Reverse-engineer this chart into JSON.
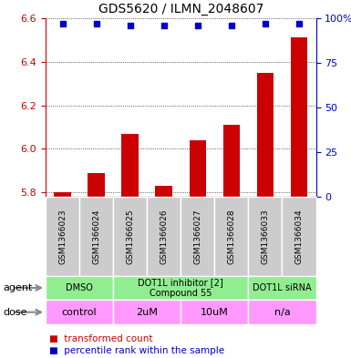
{
  "title": "GDS5620 / ILMN_2048607",
  "samples": [
    "GSM1366023",
    "GSM1366024",
    "GSM1366025",
    "GSM1366026",
    "GSM1366027",
    "GSM1366028",
    "GSM1366033",
    "GSM1366034"
  ],
  "bar_values": [
    5.8,
    5.89,
    6.07,
    5.83,
    6.04,
    6.11,
    6.35,
    6.51
  ],
  "percentile_values": [
    97,
    97,
    96,
    96,
    96,
    96,
    97,
    97
  ],
  "ylim": [
    5.78,
    6.6
  ],
  "yticks_left": [
    5.8,
    6.0,
    6.2,
    6.4,
    6.6
  ],
  "yticks_right": [
    0,
    25,
    50,
    75,
    100
  ],
  "bar_color": "#CC0000",
  "dot_color": "#0000CC",
  "bar_bottom": 5.78,
  "agent_groups": [
    {
      "label": "DMSO",
      "start": 0,
      "end": 2,
      "color": "#90EE90"
    },
    {
      "label": "DOT1L inhibitor [2]\nCompound 55",
      "start": 2,
      "end": 6,
      "color": "#90EE90"
    },
    {
      "label": "DOT1L siRNA",
      "start": 6,
      "end": 8,
      "color": "#90EE90"
    }
  ],
  "dose_groups": [
    {
      "label": "control",
      "start": 0,
      "end": 2,
      "color": "#FF99FF"
    },
    {
      "label": "2uM",
      "start": 2,
      "end": 4,
      "color": "#FF99FF"
    },
    {
      "label": "10uM",
      "start": 4,
      "end": 6,
      "color": "#FF99FF"
    },
    {
      "label": "n/a",
      "start": 6,
      "end": 8,
      "color": "#FF99FF"
    }
  ],
  "legend_bar_label": "transformed count",
  "legend_dot_label": "percentile rank within the sample",
  "xlabel_agent": "agent",
  "xlabel_dose": "dose",
  "grid_color": "#000000",
  "axis_color_left": "#CC0000",
  "axis_color_right": "#0000CC",
  "agent_fontsize": 7,
  "dose_fontsize": 8,
  "sample_fontsize": 6.5,
  "title_fontsize": 10,
  "legend_fontsize": 7.5
}
